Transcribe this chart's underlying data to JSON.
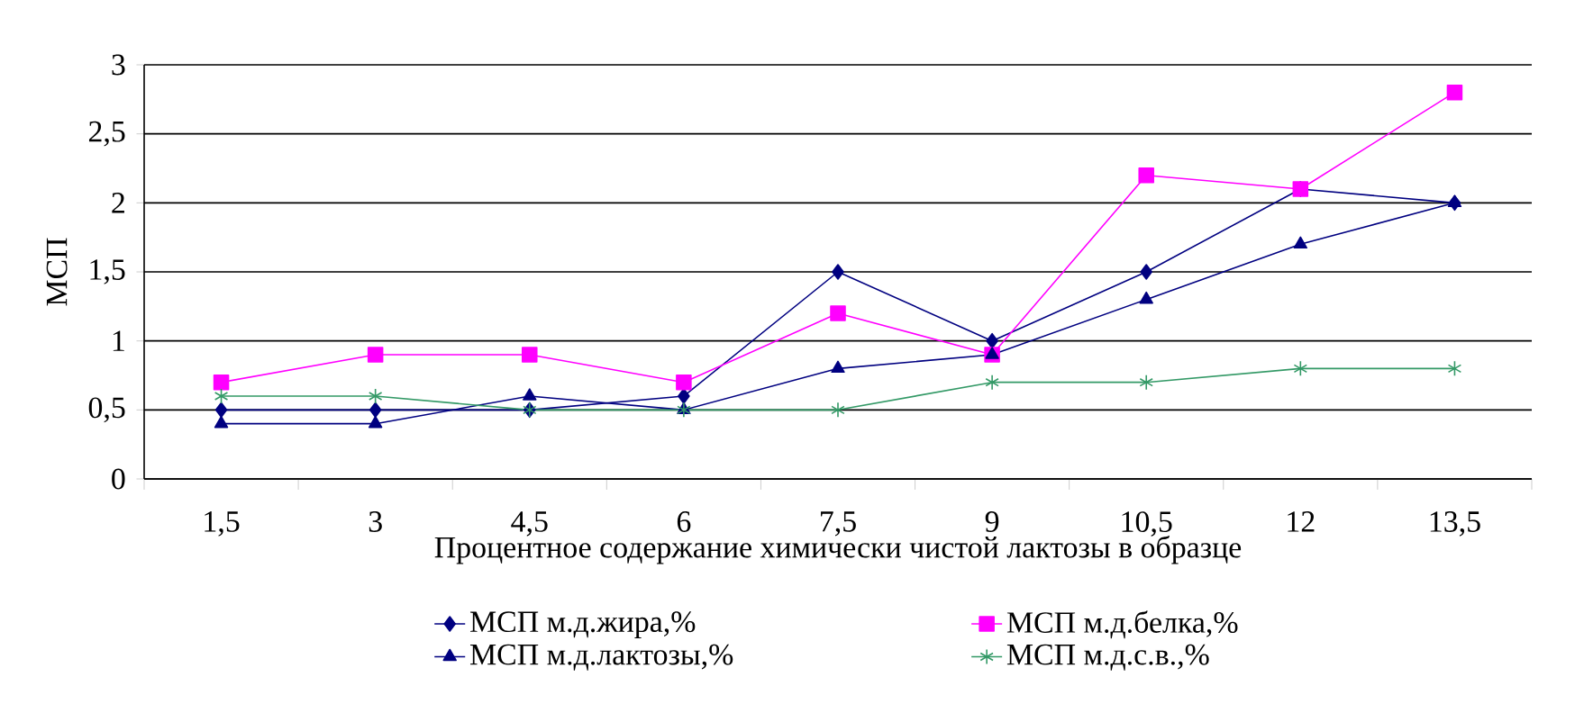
{
  "chart_data": {
    "type": "line",
    "xlabel": "Процентное содержание химически чистой лактозы в образце",
    "ylabel": "МСП",
    "categories": [
      "1,5",
      "3",
      "4,5",
      "6",
      "7,5",
      "9",
      "10,5",
      "12",
      "13,5"
    ],
    "series": [
      {
        "name": "МСП м.д.жира,%",
        "color": "#000080",
        "marker": "diamond",
        "values": [
          0.5,
          0.5,
          0.5,
          0.6,
          1.5,
          1.0,
          1.5,
          2.1,
          2.0
        ]
      },
      {
        "name": "МСП м.д.белка,%",
        "color": "#ff00ff",
        "marker": "square",
        "values": [
          0.7,
          0.9,
          0.9,
          0.7,
          1.2,
          0.9,
          2.2,
          2.1,
          2.8
        ]
      },
      {
        "name": "МСП м.д.лактозы,%",
        "color": "#000080",
        "marker": "triangle",
        "values": [
          0.4,
          0.4,
          0.6,
          0.5,
          0.8,
          0.9,
          1.3,
          1.7,
          2.0
        ]
      },
      {
        "name": "МСП м.д.с.в.,%",
        "color": "#339966",
        "marker": "cross",
        "values": [
          0.6,
          0.6,
          0.5,
          0.5,
          0.5,
          0.7,
          0.7,
          0.8,
          0.8
        ]
      }
    ],
    "ylim": [
      0,
      3
    ],
    "yticks": [
      0,
      {
        "value": 0.5,
        "label": "0,5"
      },
      1,
      {
        "value": 1.5,
        "label": "1,5"
      },
      2,
      {
        "value": 2.5,
        "label": "2,5"
      },
      3
    ],
    "grid": "y",
    "legend": "bottom",
    "line_style": "solid"
  }
}
